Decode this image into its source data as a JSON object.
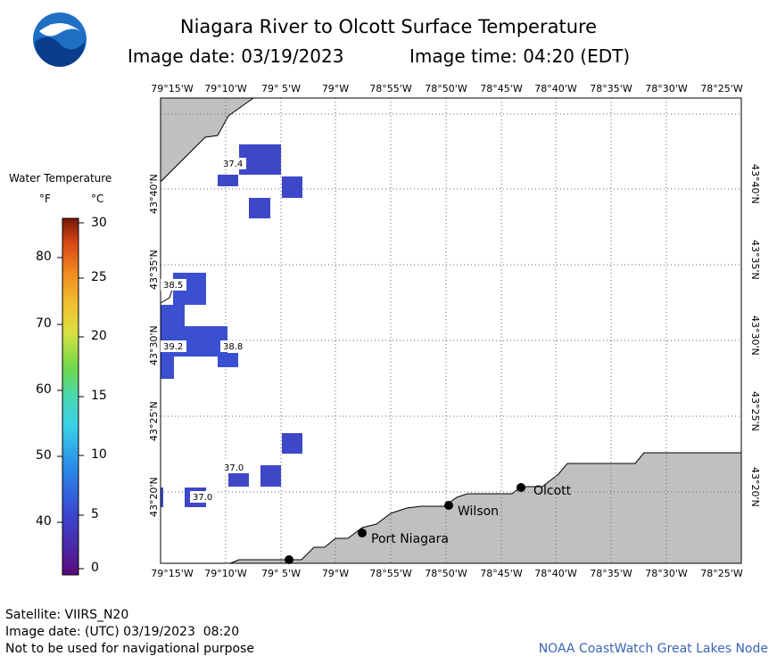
{
  "title": "Niagara River to Olcott Surface Temperature",
  "image_date": "Image date: 03/19/2023",
  "image_time": "Image time: 04:20 (EDT)",
  "logo_text": "NOAA",
  "longitude_labels": [
    "79°15'W",
    "79°10'W",
    "79° 5'W",
    "79°W",
    "78°55'W",
    "78°50'W",
    "78°45'W",
    "78°40'W",
    "78°35'W",
    "78°30'W",
    "78°25'W"
  ],
  "latitude_labels": [
    "43°40'N",
    "43°35'N",
    "43°30'N",
    "43°25'N",
    "43°20'N"
  ],
  "legend": {
    "title": "Water Temperature",
    "unit_f": "°F",
    "unit_c": "°C",
    "fahrenheit_ticks": [
      "80",
      "70",
      "60",
      "50",
      "40"
    ],
    "celsius_ticks": [
      "30",
      "25",
      "20",
      "15",
      "10",
      "5",
      "0"
    ]
  },
  "temperature_labels": [
    "37.4",
    "38.5",
    "39.2",
    "38.8",
    "37.0",
    "37.0"
  ],
  "places": [
    "Olcott",
    "Wilson",
    "Port Niagara"
  ],
  "footer": {
    "satellite": "Satellite: VIIRS_N20",
    "utc_date": "Image date: (UTC) 03/19/2023  08:20",
    "warning": "Not to be used for navigational purpose",
    "credit": "NOAA CoastWatch Great Lakes Node"
  },
  "colors": {
    "land": "#c0c0c0",
    "water_cell": "#3d47c8",
    "water_cell_2": "#3a50d0",
    "credit_text": "#3a64b8"
  }
}
